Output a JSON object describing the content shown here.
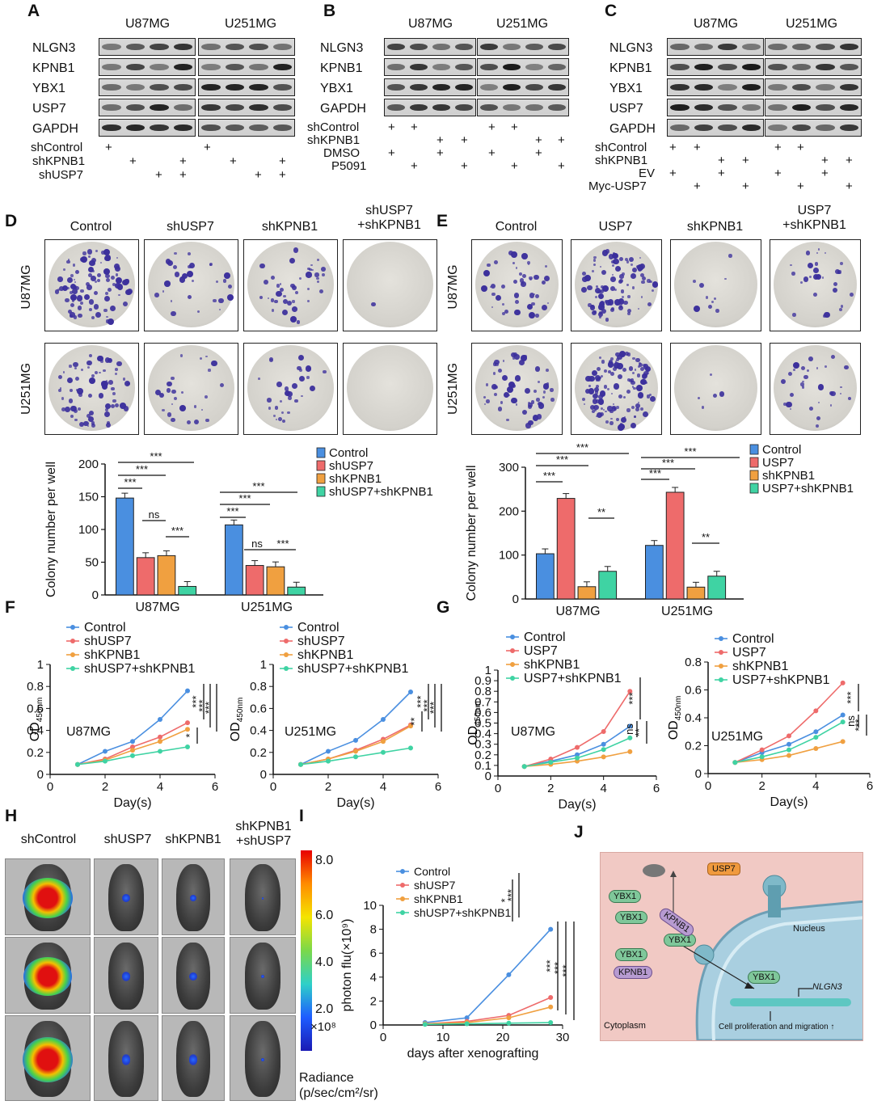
{
  "panel_letters": {
    "A": "A",
    "B": "B",
    "C": "C",
    "D": "D",
    "E": "E",
    "F": "F",
    "G": "G",
    "H": "H",
    "I": "I",
    "J": "J"
  },
  "blots": {
    "A": {
      "cells": [
        "U87MG",
        "U251MG"
      ],
      "proteins": [
        "NLGN3",
        "KPNB1",
        "YBX1",
        "USP7",
        "GAPDH"
      ],
      "cond_labels": [
        "shControl",
        "shKPNB1",
        "shUSP7"
      ]
    },
    "B": {
      "cells": [
        "U87MG",
        "U251MG"
      ],
      "proteins": [
        "NLGN3",
        "KPNB1",
        "YBX1",
        "GAPDH"
      ],
      "cond_labels": [
        "shControl",
        "shKPNB1",
        "DMSO",
        "P5091"
      ]
    },
    "C": {
      "cells": [
        "U87MG",
        "U251MG"
      ],
      "proteins": [
        "NLGN3",
        "KPNB1",
        "YBX1",
        "USP7",
        "GAPDH"
      ],
      "cond_labels": [
        "shControl",
        "shKPNB1",
        "EV",
        "Myc-USP7"
      ]
    },
    "plus": "+"
  },
  "colony": {
    "D": {
      "columns": [
        "Control",
        "shUSP7",
        "shKPNB1",
        "shUSP7\n+shKPNB1"
      ],
      "rows": [
        "U87MG",
        "U251MG"
      ]
    },
    "E": {
      "columns": [
        "Control",
        "USP7",
        "shKPNB1",
        "USP7\n+shKPNB1"
      ],
      "rows": [
        "U87MG",
        "U251MG"
      ]
    }
  },
  "chart_data": [
    {
      "id": "D",
      "type": "bar",
      "categories": [
        "U87MG",
        "U251MG"
      ],
      "series": [
        {
          "name": "Control",
          "values": [
            148,
            107
          ],
          "color": "#4a8fe0"
        },
        {
          "name": "shUSP7",
          "values": [
            57,
            45
          ],
          "color": "#ee6b6b"
        },
        {
          "name": "shKPNB1",
          "values": [
            60,
            43
          ],
          "color": "#f0a040"
        },
        {
          "name": "shUSP7+shKPNB1",
          "values": [
            13,
            12
          ],
          "color": "#3fd3a3"
        }
      ],
      "ylabel": "Colony number per well",
      "ylim": [
        0,
        200
      ],
      "yticks": [
        0,
        50,
        100,
        150,
        200
      ],
      "sig_labels": [
        "***",
        "***",
        "***",
        "ns",
        "***",
        "***",
        "***",
        "***",
        "ns",
        "***"
      ]
    },
    {
      "id": "E",
      "type": "bar",
      "categories": [
        "U87MG",
        "U251MG"
      ],
      "series": [
        {
          "name": "Control",
          "values": [
            103,
            122
          ],
          "color": "#4a8fe0"
        },
        {
          "name": "USP7",
          "values": [
            229,
            243
          ],
          "color": "#ee6b6b"
        },
        {
          "name": "shKPNB1",
          "values": [
            28,
            27
          ],
          "color": "#f0a040"
        },
        {
          "name": "USP7+shKPNB1",
          "values": [
            63,
            52
          ],
          "color": "#3fd3a3"
        }
      ],
      "ylabel": "Colony number per well",
      "ylim": [
        0,
        300
      ],
      "yticks": [
        0,
        100,
        200,
        300
      ],
      "sig_labels": [
        "***",
        "***",
        "***",
        "**",
        "***",
        "***",
        "***",
        "**"
      ]
    },
    {
      "id": "F1",
      "type": "line",
      "annotation": "U87MG",
      "x": [
        1,
        2,
        3,
        4,
        5
      ],
      "series": [
        {
          "name": "Control",
          "values": [
            0.09,
            0.21,
            0.3,
            0.5,
            0.76
          ],
          "color": "#4a8fe0"
        },
        {
          "name": "shUSP7",
          "values": [
            0.09,
            0.14,
            0.25,
            0.34,
            0.47
          ],
          "color": "#ee6b6b"
        },
        {
          "name": "shKPNB1",
          "values": [
            0.09,
            0.13,
            0.22,
            0.3,
            0.41
          ],
          "color": "#f0a040"
        },
        {
          "name": "shUSP7+shKPNB1",
          "values": [
            0.09,
            0.12,
            0.17,
            0.21,
            0.25
          ],
          "color": "#3fd3a3"
        }
      ],
      "xlabel": "Day(s)",
      "ylabel": "OD",
      "ylabel_sub": "450nm",
      "xlim": [
        0,
        6
      ],
      "ylim": [
        0,
        1.0
      ],
      "yticks": [
        0,
        0.2,
        0.4,
        0.6,
        0.8,
        1.0
      ],
      "sig_labels": [
        "***",
        "***",
        "***",
        "*"
      ]
    },
    {
      "id": "F2",
      "type": "line",
      "annotation": "U251MG",
      "x": [
        1,
        2,
        3,
        4,
        5
      ],
      "series": [
        {
          "name": "Control",
          "values": [
            0.09,
            0.21,
            0.31,
            0.5,
            0.75
          ],
          "color": "#4a8fe0"
        },
        {
          "name": "shUSP7",
          "values": [
            0.09,
            0.14,
            0.22,
            0.32,
            0.45
          ],
          "color": "#ee6b6b"
        },
        {
          "name": "shKPNB1",
          "values": [
            0.09,
            0.14,
            0.21,
            0.3,
            0.44
          ],
          "color": "#f0a040"
        },
        {
          "name": "shUSP7+shKPNB1",
          "values": [
            0.09,
            0.12,
            0.16,
            0.2,
            0.24
          ],
          "color": "#3fd3a3"
        }
      ],
      "xlabel": "Day(s)",
      "ylabel": "OD",
      "ylabel_sub": "450nm",
      "xlim": [
        0,
        6
      ],
      "ylim": [
        0,
        1.0
      ],
      "yticks": [
        0,
        0.2,
        0.4,
        0.6,
        0.8,
        1.0
      ],
      "sig_labels": [
        "***",
        "***",
        "***",
        "**"
      ]
    },
    {
      "id": "G1",
      "type": "line",
      "annotation": "U87MG",
      "x": [
        1,
        2,
        3,
        4,
        5
      ],
      "series": [
        {
          "name": "Control",
          "values": [
            0.09,
            0.14,
            0.2,
            0.3,
            0.47
          ],
          "color": "#4a8fe0"
        },
        {
          "name": "USP7",
          "values": [
            0.09,
            0.16,
            0.27,
            0.42,
            0.8
          ],
          "color": "#ee6b6b"
        },
        {
          "name": "shKPNB1",
          "values": [
            0.09,
            0.11,
            0.14,
            0.18,
            0.23
          ],
          "color": "#f0a040"
        },
        {
          "name": "USP7+shKPNB1",
          "values": [
            0.09,
            0.13,
            0.17,
            0.25,
            0.36
          ],
          "color": "#3fd3a3"
        }
      ],
      "xlabel": "Day(s)",
      "ylabel": "OD",
      "ylabel_sub": "450nm",
      "xlim": [
        0,
        6
      ],
      "ylim": [
        0,
        1.0
      ],
      "yticks": [
        0,
        0.1,
        0.2,
        0.3,
        0.4,
        0.5,
        0.6,
        0.7,
        0.8,
        0.9,
        1.0
      ],
      "sig_labels": [
        "***",
        "ns",
        "**"
      ]
    },
    {
      "id": "G2",
      "type": "line",
      "annotation": "U251MG",
      "x": [
        1,
        2,
        3,
        4,
        5
      ],
      "series": [
        {
          "name": "Control",
          "values": [
            0.08,
            0.15,
            0.21,
            0.3,
            0.42
          ],
          "color": "#4a8fe0"
        },
        {
          "name": "USP7",
          "values": [
            0.08,
            0.17,
            0.27,
            0.45,
            0.65
          ],
          "color": "#ee6b6b"
        },
        {
          "name": "shKPNB1",
          "values": [
            0.08,
            0.1,
            0.13,
            0.18,
            0.23
          ],
          "color": "#f0a040"
        },
        {
          "name": "USP7+shKPNB1",
          "values": [
            0.08,
            0.12,
            0.17,
            0.26,
            0.37
          ],
          "color": "#3fd3a3"
        }
      ],
      "xlabel": "Day(s)",
      "ylabel": "OD",
      "ylabel_sub": "450nm",
      "xlim": [
        0,
        6
      ],
      "ylim": [
        0,
        0.8
      ],
      "yticks": [
        0,
        0.2,
        0.4,
        0.6,
        0.8
      ],
      "sig_labels": [
        "***",
        "ns",
        "***"
      ]
    },
    {
      "id": "I",
      "type": "line",
      "x": [
        7,
        14,
        21,
        28
      ],
      "series": [
        {
          "name": "Control",
          "values": [
            0.2,
            0.6,
            4.2,
            8.0
          ],
          "color": "#4a8fe0"
        },
        {
          "name": "shUSP7",
          "values": [
            0.1,
            0.3,
            0.8,
            2.3
          ],
          "color": "#ee6b6b"
        },
        {
          "name": "shKPNB1",
          "values": [
            0.1,
            0.2,
            0.6,
            1.5
          ],
          "color": "#f0a040"
        },
        {
          "name": "shUSP7+shKPNB1",
          "values": [
            0.05,
            0.1,
            0.15,
            0.2
          ],
          "color": "#3fd3a3"
        }
      ],
      "xlabel": "days after xenografting",
      "ylabel": "photon flu(×10⁹)",
      "xlim": [
        0,
        30
      ],
      "ylim": [
        0,
        10
      ],
      "xticks": [
        0,
        10,
        20,
        30
      ],
      "yticks": [
        0,
        2,
        4,
        6,
        8,
        10
      ],
      "sig_labels": [
        "*",
        "***",
        "***",
        "***",
        "***"
      ]
    }
  ],
  "imaging": {
    "columns": [
      "shControl",
      "shUSP7",
      "shKPNB1",
      "shKPNB1\n+shUSP7"
    ],
    "scale_ticks": [
      "8.0",
      "6.0",
      "4.0",
      "2.0"
    ],
    "scale_unit": "×10⁸",
    "scale_title": "Radiance",
    "scale_units_label": "(p/sec/cm²/sr)"
  },
  "schematic": {
    "ybx_labels": [
      "YBX1",
      "YBX1",
      "YBX1",
      "YBX1",
      "YBX1"
    ],
    "kpnb_labels": [
      "KPNB1",
      "KPNB1"
    ],
    "usp7": "USP7",
    "nucleus": "Nucleus",
    "cytoplasm": "Cytoplasm",
    "gene": "NLGN3",
    "outcome": "Cell proliferation and migration ↑"
  }
}
